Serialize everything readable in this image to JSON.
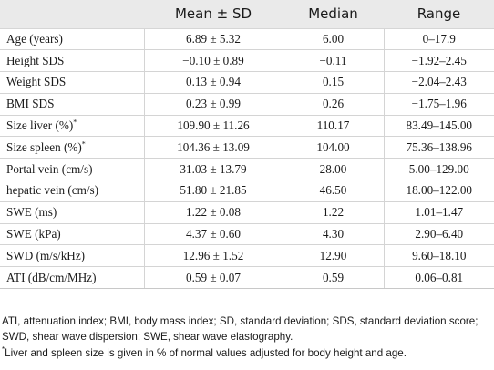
{
  "table": {
    "headers": [
      "",
      "Mean ± SD",
      "Median",
      "Range"
    ],
    "rows": [
      {
        "label": "Age (years)",
        "sup": "",
        "mean_sd": "6.89 ± 5.32",
        "median": "6.00",
        "range": "0–17.9"
      },
      {
        "label": "Height SDS",
        "sup": "",
        "mean_sd": "−0.10 ± 0.89",
        "median": "−0.11",
        "range": "−1.92–2.45"
      },
      {
        "label": "Weight SDS",
        "sup": "",
        "mean_sd": "0.13 ± 0.94",
        "median": "0.15",
        "range": "−2.04–2.43"
      },
      {
        "label": "BMI SDS",
        "sup": "",
        "mean_sd": "0.23 ± 0.99",
        "median": "0.26",
        "range": "−1.75–1.96"
      },
      {
        "label": "Size liver (%)",
        "sup": "*",
        "mean_sd": "109.90 ± 11.26",
        "median": "110.17",
        "range": "83.49–145.00"
      },
      {
        "label": "Size spleen (%)",
        "sup": "*",
        "mean_sd": "104.36 ± 13.09",
        "median": "104.00",
        "range": "75.36–138.96"
      },
      {
        "label": "Portal vein (cm/s)",
        "sup": "",
        "mean_sd": "31.03 ± 13.79",
        "median": "28.00",
        "range": "5.00–129.00"
      },
      {
        "label": "hepatic vein (cm/s)",
        "sup": "",
        "mean_sd": "51.80 ± 21.85",
        "median": "46.50",
        "range": "18.00–122.00"
      },
      {
        "label": "SWE (ms)",
        "sup": "",
        "mean_sd": "1.22 ± 0.08",
        "median": "1.22",
        "range": "1.01–1.47"
      },
      {
        "label": "SWE (kPa)",
        "sup": "",
        "mean_sd": "4.37 ± 0.60",
        "median": "4.30",
        "range": "2.90–6.40"
      },
      {
        "label": "SWD (m/s/kHz)",
        "sup": "",
        "mean_sd": "12.96 ± 1.52",
        "median": "12.90",
        "range": "9.60–18.10"
      },
      {
        "label": "ATI (dB/cm/MHz)",
        "sup": "",
        "mean_sd": "0.59 ± 0.07",
        "median": "0.59",
        "range": "0.06–0.81"
      }
    ]
  },
  "footnotes": {
    "abbreviations": "ATI, attenuation index; BMI, body mass index; SD, standard deviation; SDS, standard deviation score; SWD, shear wave dispersion; SWE, shear wave elastography.",
    "star_marker": "*",
    "star_note": "Liver and spleen size is given in % of normal values adjusted for body height and age."
  }
}
